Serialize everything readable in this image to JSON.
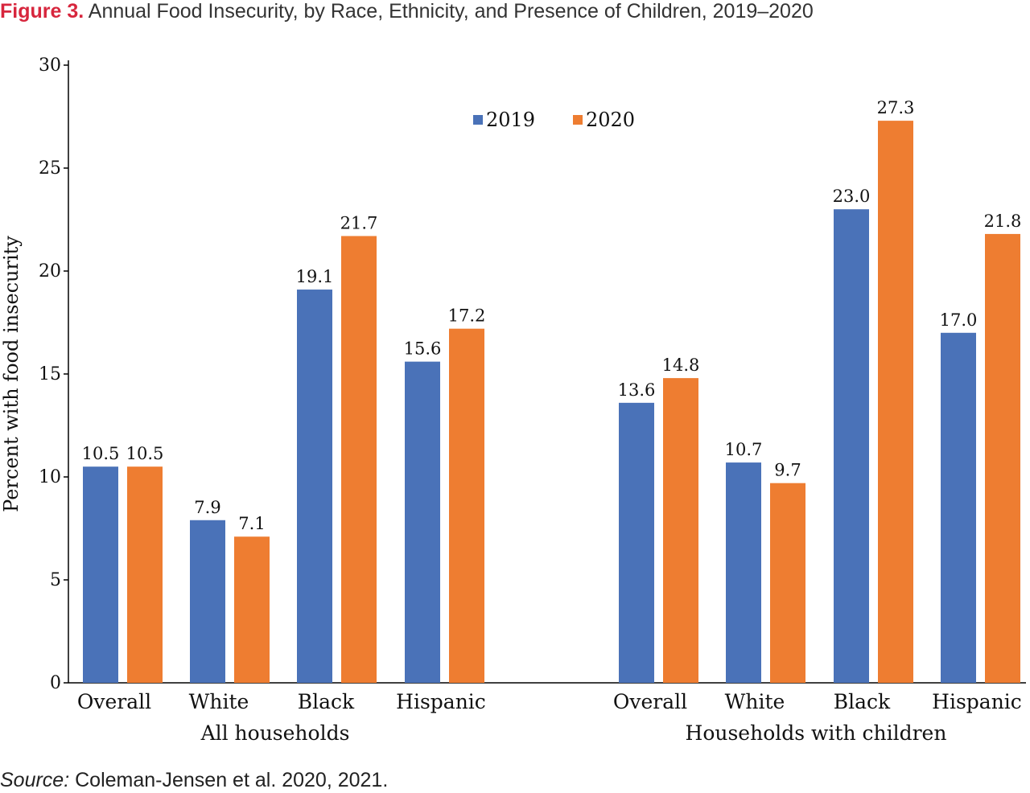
{
  "figure": {
    "label": "Figure 3.",
    "title": "Annual Food Insecurity, by Race, Ethnicity, and Presence of Children, 2019–2020"
  },
  "source": {
    "label": "Source:",
    "text": "Coleman-Jensen et al. 2020, 2021."
  },
  "colors": {
    "series_2019": "#4a72b8",
    "series_2020": "#ee7d31",
    "title_accent": "#d7263d"
  },
  "chart_data": {
    "type": "bar",
    "ylabel": "Percent with food insecurity",
    "ylim": [
      0,
      30
    ],
    "yticks": [
      0,
      5,
      10,
      15,
      20,
      25,
      30
    ],
    "legend_position": "top-center",
    "groups": [
      {
        "label": "All households",
        "categories": [
          "Overall",
          "White",
          "Black",
          "Hispanic"
        ]
      },
      {
        "label": "Households with children",
        "categories": [
          "Overall",
          "White",
          "Black",
          "Hispanic"
        ]
      }
    ],
    "series": [
      {
        "name": "2019",
        "values": [
          10.5,
          7.9,
          19.1,
          15.6,
          13.6,
          10.7,
          23.0,
          17.0
        ]
      },
      {
        "name": "2020",
        "values": [
          10.5,
          7.1,
          21.7,
          17.2,
          14.8,
          9.7,
          27.3,
          21.8
        ]
      }
    ]
  }
}
